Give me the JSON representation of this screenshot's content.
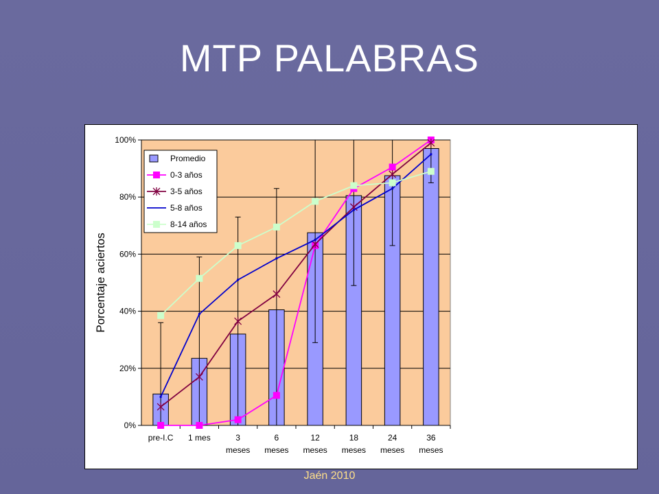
{
  "slide": {
    "title": "MTP  PALABRAS",
    "footer": "Jaén 2010"
  },
  "colors": {
    "plot_background": "#fbcb9c",
    "bar_fill": "#9999ff",
    "series_0_3": "#ff00ff",
    "series_3_5": "#800040",
    "series_5_8": "#0000cc",
    "series_8_14": "#ccffcc",
    "footer_text": "#ffe08a"
  },
  "chart_data": {
    "type": "bar",
    "title": "",
    "xlabel": "",
    "ylabel": "Porcentaje aciertos",
    "ylim": [
      0,
      100
    ],
    "yticks": [
      "0%",
      "20%",
      "40%",
      "60%",
      "80%",
      "100%"
    ],
    "grid": true,
    "legend_position": "top-left",
    "categories": [
      [
        "pre-I.C",
        ""
      ],
      [
        "1 mes",
        ""
      ],
      [
        "3",
        "meses"
      ],
      [
        "6",
        "meses"
      ],
      [
        "12",
        "meses"
      ],
      [
        "18",
        "meses"
      ],
      [
        "24",
        "meses"
      ],
      [
        "36",
        "meses"
      ]
    ],
    "bars": {
      "name": "Promedio",
      "values": [
        11,
        23.5,
        32,
        40.5,
        67.5,
        80.5,
        87.5,
        97
      ],
      "error_low": [
        0,
        0,
        0,
        0,
        29,
        49,
        63,
        85
      ],
      "error_high": [
        36,
        59,
        73,
        83,
        100,
        100,
        100,
        100
      ]
    },
    "series": [
      {
        "name": "0-3 años",
        "marker": "square",
        "values": [
          0,
          0,
          2,
          10.5,
          63,
          83,
          90.5,
          100
        ]
      },
      {
        "name": "3-5 años",
        "marker": "star",
        "values": [
          6.5,
          17,
          36.5,
          46,
          63.5,
          76.5,
          88,
          99
        ]
      },
      {
        "name": "5-8 años",
        "marker": "none",
        "values": [
          10,
          39,
          51,
          58.5,
          65,
          75.5,
          83,
          95
        ]
      },
      {
        "name": "8-14 años",
        "marker": "square",
        "values": [
          38.5,
          51.5,
          63,
          69.5,
          78.5,
          84,
          85,
          89
        ]
      }
    ]
  }
}
